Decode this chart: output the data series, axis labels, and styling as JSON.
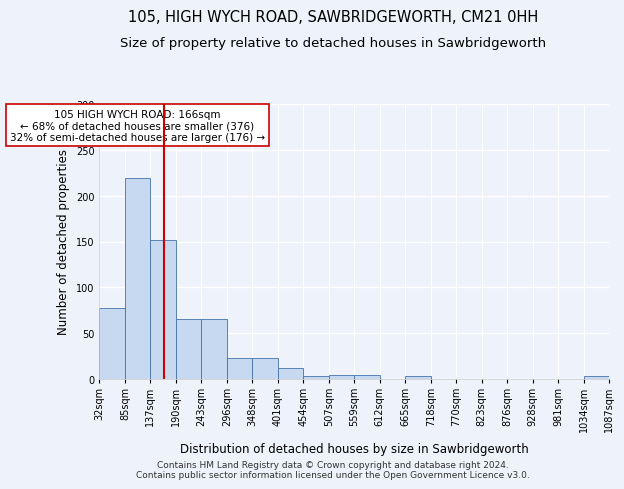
{
  "title": "105, HIGH WYCH ROAD, SAWBRIDGEWORTH, CM21 0HH",
  "subtitle": "Size of property relative to detached houses in Sawbridgeworth",
  "xlabel": "Distribution of detached houses by size in Sawbridgeworth",
  "ylabel": "Number of detached properties",
  "bar_color": "#c6d9f0",
  "bar_edge_color": "#4472a8",
  "vline_color": "#cc0000",
  "vline_x": 166,
  "annotation_text": "105 HIGH WYCH ROAD: 166sqm\n← 68% of detached houses are smaller (376)\n32% of semi-detached houses are larger (176) →",
  "annotation_box_color": "#ffffff",
  "annotation_box_edge_color": "#cc0000",
  "bin_edges": [
    32,
    85,
    137,
    190,
    243,
    296,
    348,
    401,
    454,
    507,
    559,
    612,
    665,
    718,
    770,
    823,
    876,
    928,
    981,
    1034,
    1087
  ],
  "bar_heights": [
    77,
    219,
    152,
    66,
    65,
    23,
    23,
    12,
    3,
    4,
    4,
    0,
    3,
    0,
    0,
    0,
    0,
    0,
    0,
    3
  ],
  "ylim": [
    0,
    300
  ],
  "yticks": [
    0,
    50,
    100,
    150,
    200,
    250,
    300
  ],
  "footer_text": "Contains HM Land Registry data © Crown copyright and database right 2024.\nContains public sector information licensed under the Open Government Licence v3.0.",
  "bg_color": "#eef2fa",
  "grid_color": "#ffffff",
  "title_fontsize": 10.5,
  "subtitle_fontsize": 9.5,
  "label_fontsize": 8.5,
  "tick_fontsize": 7,
  "footer_fontsize": 6.5,
  "annotation_fontsize": 7.5
}
